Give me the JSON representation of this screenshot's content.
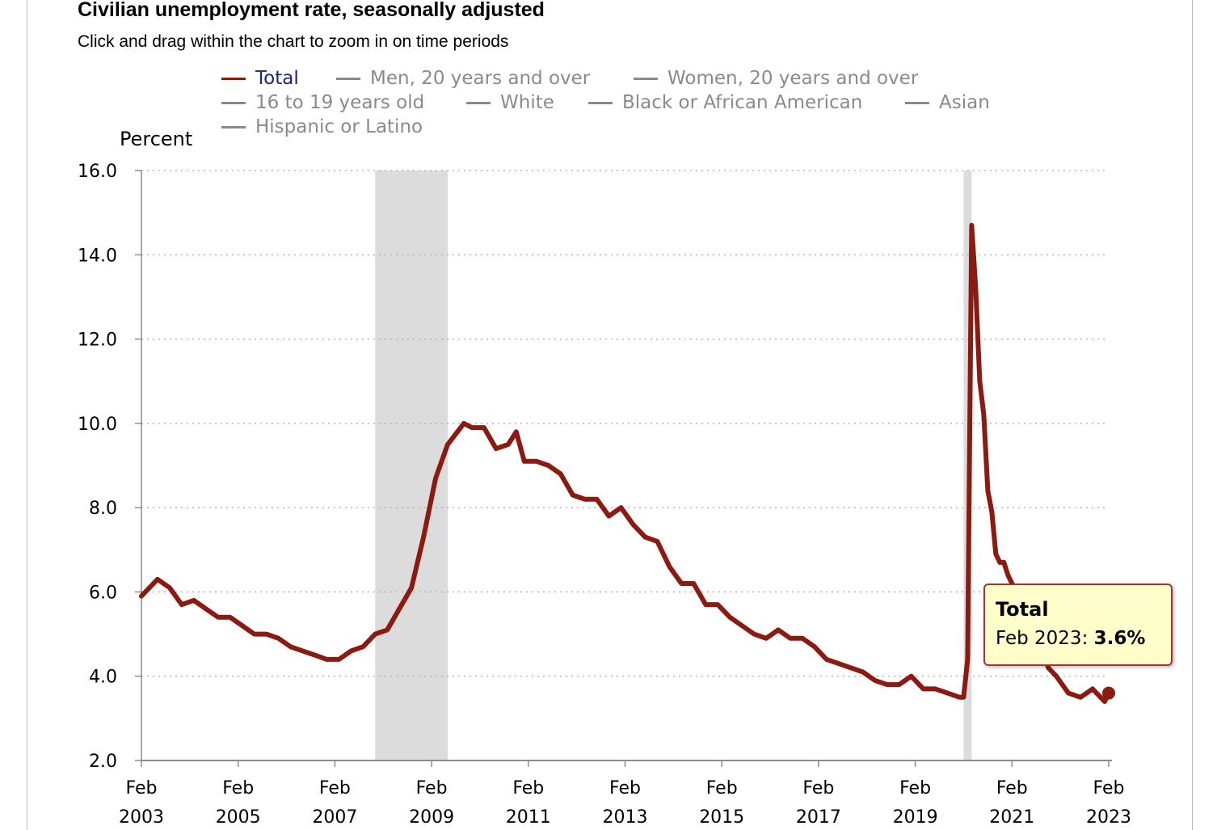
{
  "header": {
    "title": "Civilian unemployment rate, seasonally adjusted",
    "subtitle": "Click and drag within the chart to zoom in on time periods"
  },
  "legend": {
    "items": [
      {
        "label": "Total",
        "active": true
      },
      {
        "label": "Men, 20 years and over",
        "active": false
      },
      {
        "label": "Women, 20 years and over",
        "active": false
      },
      {
        "label": "16 to 19 years old",
        "active": false
      },
      {
        "label": "White",
        "active": false
      },
      {
        "label": "Black or African American",
        "active": false
      },
      {
        "label": "Asian",
        "active": false
      },
      {
        "label": "Hispanic or Latino",
        "active": false
      }
    ]
  },
  "tooltip": {
    "series": "Total",
    "period": "Feb 2023",
    "separator": ":",
    "value": "3.6%"
  },
  "colors": {
    "series": "#8b1a10",
    "recession": "#dcdcdc",
    "tooltip_bg": "#ffffcc",
    "tooltip_border": "#a83232",
    "legend_active": "#1a237e",
    "legend_inactive": "#8a8a8a"
  },
  "chart_data": {
    "type": "line",
    "ylabel": "Percent",
    "ylim": [
      2.0,
      16.0
    ],
    "yticks": [
      "2.0",
      "4.0",
      "6.0",
      "8.0",
      "10.0",
      "12.0",
      "14.0",
      "16.0"
    ],
    "xticks": [
      {
        "month": "Feb",
        "year": "2003",
        "date": "2003-02"
      },
      {
        "month": "Feb",
        "year": "2005",
        "date": "2005-02"
      },
      {
        "month": "Feb",
        "year": "2007",
        "date": "2007-02"
      },
      {
        "month": "Feb",
        "year": "2009",
        "date": "2009-02"
      },
      {
        "month": "Feb",
        "year": "2011",
        "date": "2011-02"
      },
      {
        "month": "Feb",
        "year": "2013",
        "date": "2013-02"
      },
      {
        "month": "Feb",
        "year": "2015",
        "date": "2015-02"
      },
      {
        "month": "Feb",
        "year": "2017",
        "date": "2017-02"
      },
      {
        "month": "Feb",
        "year": "2019",
        "date": "2019-02"
      },
      {
        "month": "Feb",
        "year": "2021",
        "date": "2021-02"
      },
      {
        "month": "Feb",
        "year": "2023",
        "date": "2023-02"
      }
    ],
    "xlim": [
      "2003-02",
      "2023-02"
    ],
    "grid": true,
    "recessions": [
      {
        "start": "2007-12",
        "end": "2009-06"
      },
      {
        "start": "2020-02",
        "end": "2020-04"
      }
    ],
    "series": [
      {
        "name": "Total",
        "points": [
          [
            "2003-02",
            5.9
          ],
          [
            "2003-06",
            6.3
          ],
          [
            "2003-09",
            6.1
          ],
          [
            "2003-12",
            5.7
          ],
          [
            "2004-03",
            5.8
          ],
          [
            "2004-06",
            5.6
          ],
          [
            "2004-09",
            5.4
          ],
          [
            "2004-12",
            5.4
          ],
          [
            "2005-03",
            5.2
          ],
          [
            "2005-06",
            5.0
          ],
          [
            "2005-09",
            5.0
          ],
          [
            "2005-12",
            4.9
          ],
          [
            "2006-03",
            4.7
          ],
          [
            "2006-06",
            4.6
          ],
          [
            "2006-09",
            4.5
          ],
          [
            "2006-12",
            4.4
          ],
          [
            "2007-03",
            4.4
          ],
          [
            "2007-06",
            4.6
          ],
          [
            "2007-09",
            4.7
          ],
          [
            "2007-12",
            5.0
          ],
          [
            "2008-03",
            5.1
          ],
          [
            "2008-06",
            5.6
          ],
          [
            "2008-09",
            6.1
          ],
          [
            "2008-12",
            7.3
          ],
          [
            "2009-03",
            8.7
          ],
          [
            "2009-06",
            9.5
          ],
          [
            "2009-10",
            10.0
          ],
          [
            "2009-12",
            9.9
          ],
          [
            "2010-03",
            9.9
          ],
          [
            "2010-06",
            9.4
          ],
          [
            "2010-09",
            9.5
          ],
          [
            "2010-11",
            9.8
          ],
          [
            "2011-01",
            9.1
          ],
          [
            "2011-04",
            9.1
          ],
          [
            "2011-07",
            9.0
          ],
          [
            "2011-10",
            8.8
          ],
          [
            "2012-01",
            8.3
          ],
          [
            "2012-04",
            8.2
          ],
          [
            "2012-07",
            8.2
          ],
          [
            "2012-10",
            7.8
          ],
          [
            "2013-01",
            8.0
          ],
          [
            "2013-04",
            7.6
          ],
          [
            "2013-07",
            7.3
          ],
          [
            "2013-10",
            7.2
          ],
          [
            "2014-01",
            6.6
          ],
          [
            "2014-04",
            6.2
          ],
          [
            "2014-07",
            6.2
          ],
          [
            "2014-10",
            5.7
          ],
          [
            "2015-01",
            5.7
          ],
          [
            "2015-04",
            5.4
          ],
          [
            "2015-07",
            5.2
          ],
          [
            "2015-10",
            5.0
          ],
          [
            "2016-01",
            4.9
          ],
          [
            "2016-04",
            5.1
          ],
          [
            "2016-07",
            4.9
          ],
          [
            "2016-10",
            4.9
          ],
          [
            "2017-01",
            4.7
          ],
          [
            "2017-04",
            4.4
          ],
          [
            "2017-07",
            4.3
          ],
          [
            "2017-10",
            4.2
          ],
          [
            "2018-01",
            4.1
          ],
          [
            "2018-04",
            3.9
          ],
          [
            "2018-07",
            3.8
          ],
          [
            "2018-10",
            3.8
          ],
          [
            "2019-01",
            4.0
          ],
          [
            "2019-04",
            3.7
          ],
          [
            "2019-07",
            3.7
          ],
          [
            "2019-10",
            3.6
          ],
          [
            "2020-01",
            3.5
          ],
          [
            "2020-02",
            3.5
          ],
          [
            "2020-03",
            4.4
          ],
          [
            "2020-04",
            14.7
          ],
          [
            "2020-05",
            13.2
          ],
          [
            "2020-06",
            11.0
          ],
          [
            "2020-07",
            10.2
          ],
          [
            "2020-08",
            8.4
          ],
          [
            "2020-09",
            7.9
          ],
          [
            "2020-10",
            6.9
          ],
          [
            "2020-11",
            6.7
          ],
          [
            "2020-12",
            6.7
          ],
          [
            "2021-01",
            6.4
          ],
          [
            "2021-02",
            6.2
          ],
          [
            "2021-05",
            5.8
          ],
          [
            "2021-08",
            5.2
          ],
          [
            "2021-11",
            4.2
          ],
          [
            "2022-01",
            4.0
          ],
          [
            "2022-04",
            3.6
          ],
          [
            "2022-07",
            3.5
          ],
          [
            "2022-10",
            3.7
          ],
          [
            "2023-01",
            3.4
          ],
          [
            "2023-02",
            3.6
          ]
        ]
      }
    ],
    "highlighted_point": {
      "series": "Total",
      "date": "2023-02",
      "value": 3.6
    }
  }
}
